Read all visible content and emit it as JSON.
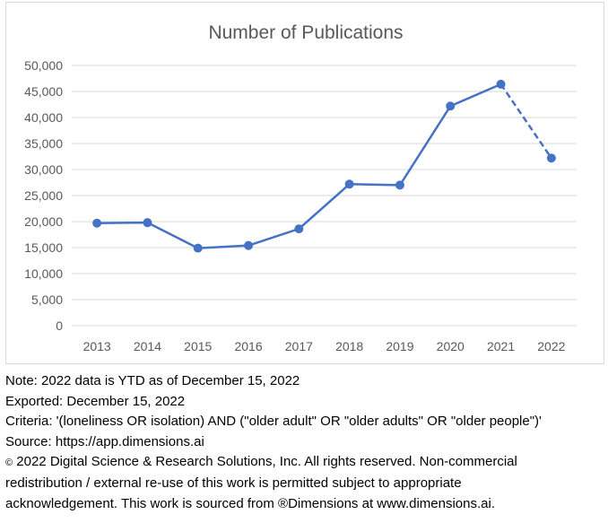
{
  "chart_data": {
    "type": "line",
    "title": "Number of Publications",
    "xlabel": "",
    "ylabel": "",
    "ylim": [
      0,
      50000
    ],
    "yticks": [
      0,
      5000,
      10000,
      15000,
      20000,
      25000,
      30000,
      35000,
      40000,
      45000,
      50000
    ],
    "ytick_labels": [
      "0",
      "5,000",
      "10,000",
      "15,000",
      "20,000",
      "25,000",
      "30,000",
      "35,000",
      "40,000",
      "45,000",
      "50,000"
    ],
    "categories": [
      "2013",
      "2014",
      "2015",
      "2016",
      "2017",
      "2018",
      "2019",
      "2020",
      "2021",
      "2022"
    ],
    "series": [
      {
        "values": [
          19700,
          19800,
          14900,
          15400,
          18600,
          27200,
          27000,
          42200,
          46400,
          32200
        ],
        "color": "#4472c4",
        "dashed_last_segment": true
      }
    ],
    "grid": true,
    "legend": "none"
  },
  "notes": {
    "note": "Note: 2022 data is YTD as of December 15, 2022",
    "exported": "Exported: December 15, 2022",
    "criteria": "Criteria: '(loneliness OR isolation) AND (\"older adult\" OR \"older adults\" OR \"older people\")'",
    "source": "Source: https://app.dimensions.ai",
    "copyright_symbol": "©",
    "copyright": " 2022 Digital Science & Research Solutions, Inc. All rights reserved. Non-commercial redistribution / external re-use of this work is permitted subject to appropriate acknowledgement. This work is sourced from ®Dimensions at www.dimensions.ai."
  },
  "colors": {
    "series": "#4472c4",
    "grid": "#d9d9d9",
    "axis_text": "#595959",
    "title": "#595959"
  }
}
